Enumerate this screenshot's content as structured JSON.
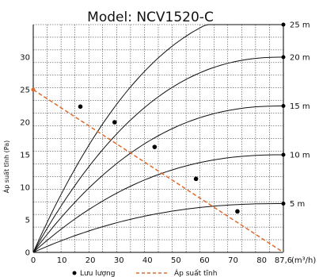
{
  "chart_data": {
    "type": "line",
    "title": "Model: NCV1520-C",
    "ylabel": "Áp suất tĩnh (Pa)",
    "xlabel": "(m³/h)",
    "xlim": [
      0,
      87.6
    ],
    "ylim": [
      0,
      35
    ],
    "x_ticks": [
      0,
      10,
      20,
      30,
      40,
      50,
      60,
      70,
      80,
      87.6
    ],
    "x_tick_labels": [
      "0",
      "10",
      "20",
      "30",
      "40",
      "50",
      "60",
      "70",
      "80",
      "87,6"
    ],
    "y_ticks": [
      0,
      5,
      10,
      15,
      20,
      25,
      30
    ],
    "y_tick_labels": [
      "0",
      "5",
      "10",
      "15",
      "20",
      "25",
      "30"
    ],
    "grid": true,
    "curves": [
      {
        "name": "5 m",
        "y_end": 7.5
      },
      {
        "name": "10 m",
        "y_end": 15
      },
      {
        "name": "15 m",
        "y_end": 22.5
      },
      {
        "name": "20 m",
        "y_end": 30
      },
      {
        "name": "25 m",
        "y_end": 37.5
      }
    ],
    "static_pressure_line": {
      "name": "Áp suất tĩnh",
      "x": [
        0,
        87.6
      ],
      "y": [
        25,
        0
      ]
    },
    "flow_points": {
      "name": "Lưu lượng",
      "points": [
        {
          "x": 16.5,
          "y": 22.4
        },
        {
          "x": 28.5,
          "y": 20
        },
        {
          "x": 42.5,
          "y": 16.2
        },
        {
          "x": 57,
          "y": 11.3
        },
        {
          "x": 71.5,
          "y": 6.3
        }
      ]
    },
    "legend_position": "bottom"
  }
}
